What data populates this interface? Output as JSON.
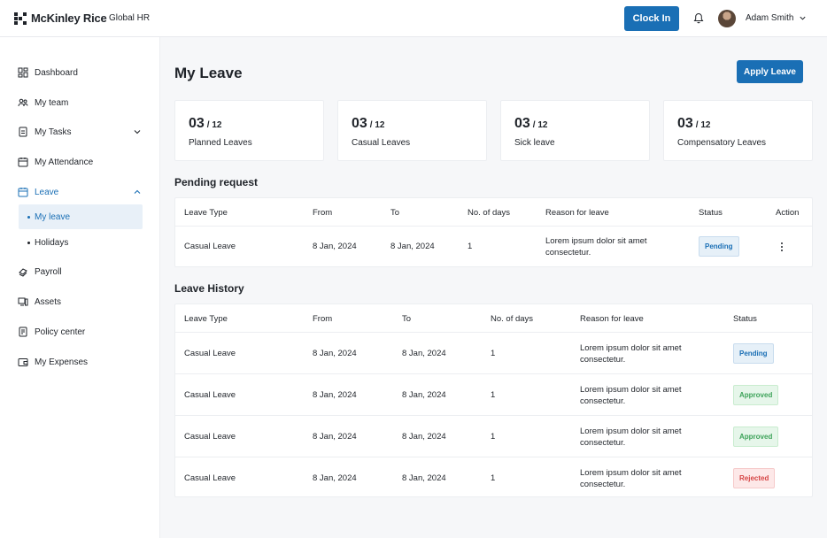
{
  "header": {
    "brand": "McKinley Rice",
    "product": "Global HR",
    "clock_in_label": "Clock In",
    "user_name": "Adam Smith"
  },
  "sidebar": {
    "items": [
      {
        "label": "Dashboard",
        "icon": "dashboard-icon"
      },
      {
        "label": "My team",
        "icon": "team-icon"
      },
      {
        "label": "My Tasks",
        "icon": "tasks-icon"
      },
      {
        "label": "My Attendance",
        "icon": "calendar-icon"
      },
      {
        "label": "Leave",
        "icon": "calendar-icon"
      },
      {
        "label": "Payroll",
        "icon": "payroll-icon"
      },
      {
        "label": "Assets",
        "icon": "assets-icon"
      },
      {
        "label": "Policy center",
        "icon": "policy-icon"
      },
      {
        "label": "My Expenses",
        "icon": "wallet-icon"
      }
    ],
    "leave_sub": [
      {
        "label": "My leave"
      },
      {
        "label": "Holidays"
      }
    ]
  },
  "main": {
    "title": "My Leave",
    "apply_label": "Apply Leave",
    "summary": [
      {
        "value": "03",
        "total": "/ 12",
        "label": "Planned Leaves"
      },
      {
        "value": "03",
        "total": "/ 12",
        "label": "Casual Leaves"
      },
      {
        "value": "03",
        "total": "/ 12",
        "label": "Sick leave"
      },
      {
        "value": "03",
        "total": "/ 12",
        "label": "Compensatory Leaves"
      }
    ],
    "pending": {
      "title": "Pending request",
      "headers": [
        "Leave Type",
        "From",
        "To",
        "No. of days",
        "Reason for leave",
        "Status",
        "Action"
      ],
      "rows": [
        {
          "type": "Casual Leave",
          "from": "8 Jan, 2024",
          "to": "8 Jan, 2024",
          "days": "1",
          "reason1": "Lorem ipsum dolor sit amet",
          "reason2": "consectetur.",
          "status": "Pending"
        }
      ]
    },
    "history": {
      "title": "Leave History",
      "headers": [
        "Leave Type",
        "From",
        "To",
        "No. of days",
        "Reason for leave",
        "Status"
      ],
      "rows": [
        {
          "type": "Casual Leave",
          "from": "8 Jan, 2024",
          "to": "8 Jan, 2024",
          "days": "1",
          "reason1": "Lorem ipsum dolor sit amet",
          "reason2": "consectetur.",
          "status": "Pending"
        },
        {
          "type": "Casual Leave",
          "from": "8 Jan, 2024",
          "to": "8 Jan, 2024",
          "days": "1",
          "reason1": "Lorem ipsum dolor sit amet",
          "reason2": "consectetur.",
          "status": "Approved"
        },
        {
          "type": "Casual Leave",
          "from": "8 Jan, 2024",
          "to": "8 Jan, 2024",
          "days": "1",
          "reason1": "Lorem ipsum dolor sit amet",
          "reason2": "consectetur.",
          "status": "Approved"
        },
        {
          "type": "Casual Leave",
          "from": "8 Jan, 2024",
          "to": "8 Jan, 2024",
          "days": "1",
          "reason1": "Lorem ipsum dolor sit amet",
          "reason2": "consectetur.",
          "status": "Rejected"
        }
      ]
    }
  },
  "colors": {
    "accent": "#1a6fb5",
    "pending": "#1a6fb5",
    "approved": "#3ea35a",
    "rejected": "#d64545"
  }
}
